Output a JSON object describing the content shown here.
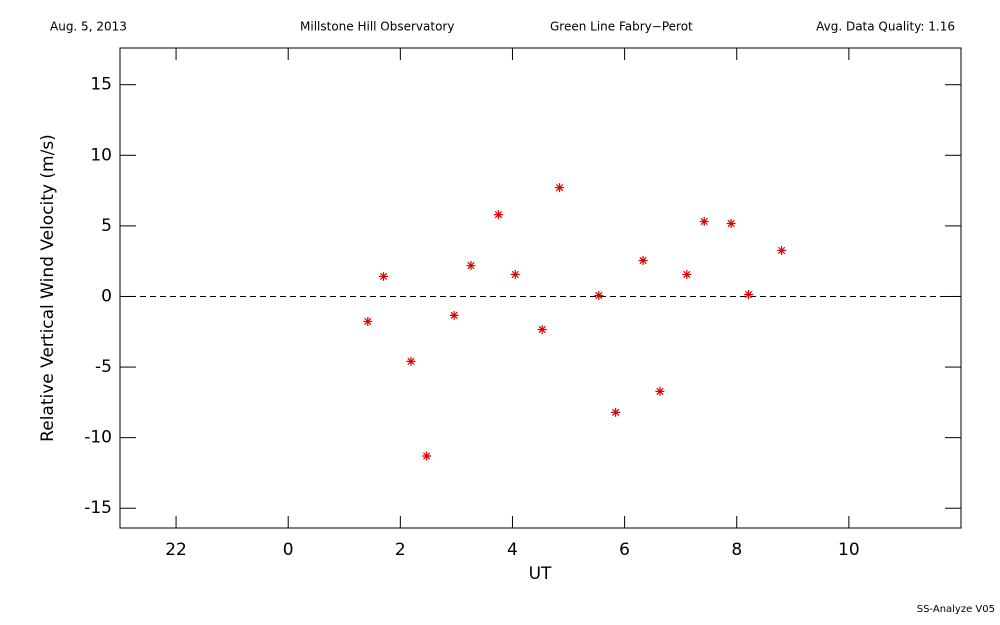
{
  "chart_data": {
    "type": "scatter",
    "header": [
      "Aug. 5, 2013",
      "Millstone Hill Observatory",
      "Green Line Fabry−Perot",
      "Avg. Data Quality: 1.16"
    ],
    "footer": "SS-Analyze V05",
    "xlabel": "UT",
    "ylabel": "Relative Vertical Wind Velocity (m/s)",
    "xlim": [
      21,
      36
    ],
    "ylim": [
      -16.4,
      17.6
    ],
    "xticks": [
      22,
      {
        "value": 24,
        "label": "0"
      },
      {
        "value": 26,
        "label": "2"
      },
      {
        "value": 28,
        "label": "4"
      },
      {
        "value": 30,
        "label": "6"
      },
      {
        "value": 32,
        "label": "8"
      },
      {
        "value": 34,
        "label": "10"
      }
    ],
    "yticks": [
      -15,
      -10,
      -5,
      0,
      5,
      10,
      15
    ],
    "reference_line": 0,
    "series": [
      {
        "color": "#e00000",
        "x": [
          25.42,
          25.7,
          26.19,
          26.47,
          26.96,
          27.26,
          27.75,
          28.05,
          28.53,
          28.84,
          29.54,
          29.84,
          30.33,
          30.63,
          31.11,
          31.42,
          31.9,
          32.21,
          32.8
        ],
        "values": [
          -1.77,
          1.42,
          -4.6,
          -11.3,
          -1.34,
          2.19,
          5.8,
          1.56,
          -2.34,
          7.71,
          0.07,
          -8.21,
          2.55,
          -6.72,
          1.56,
          5.31,
          5.17,
          0.14,
          3.26
        ]
      }
    ]
  }
}
